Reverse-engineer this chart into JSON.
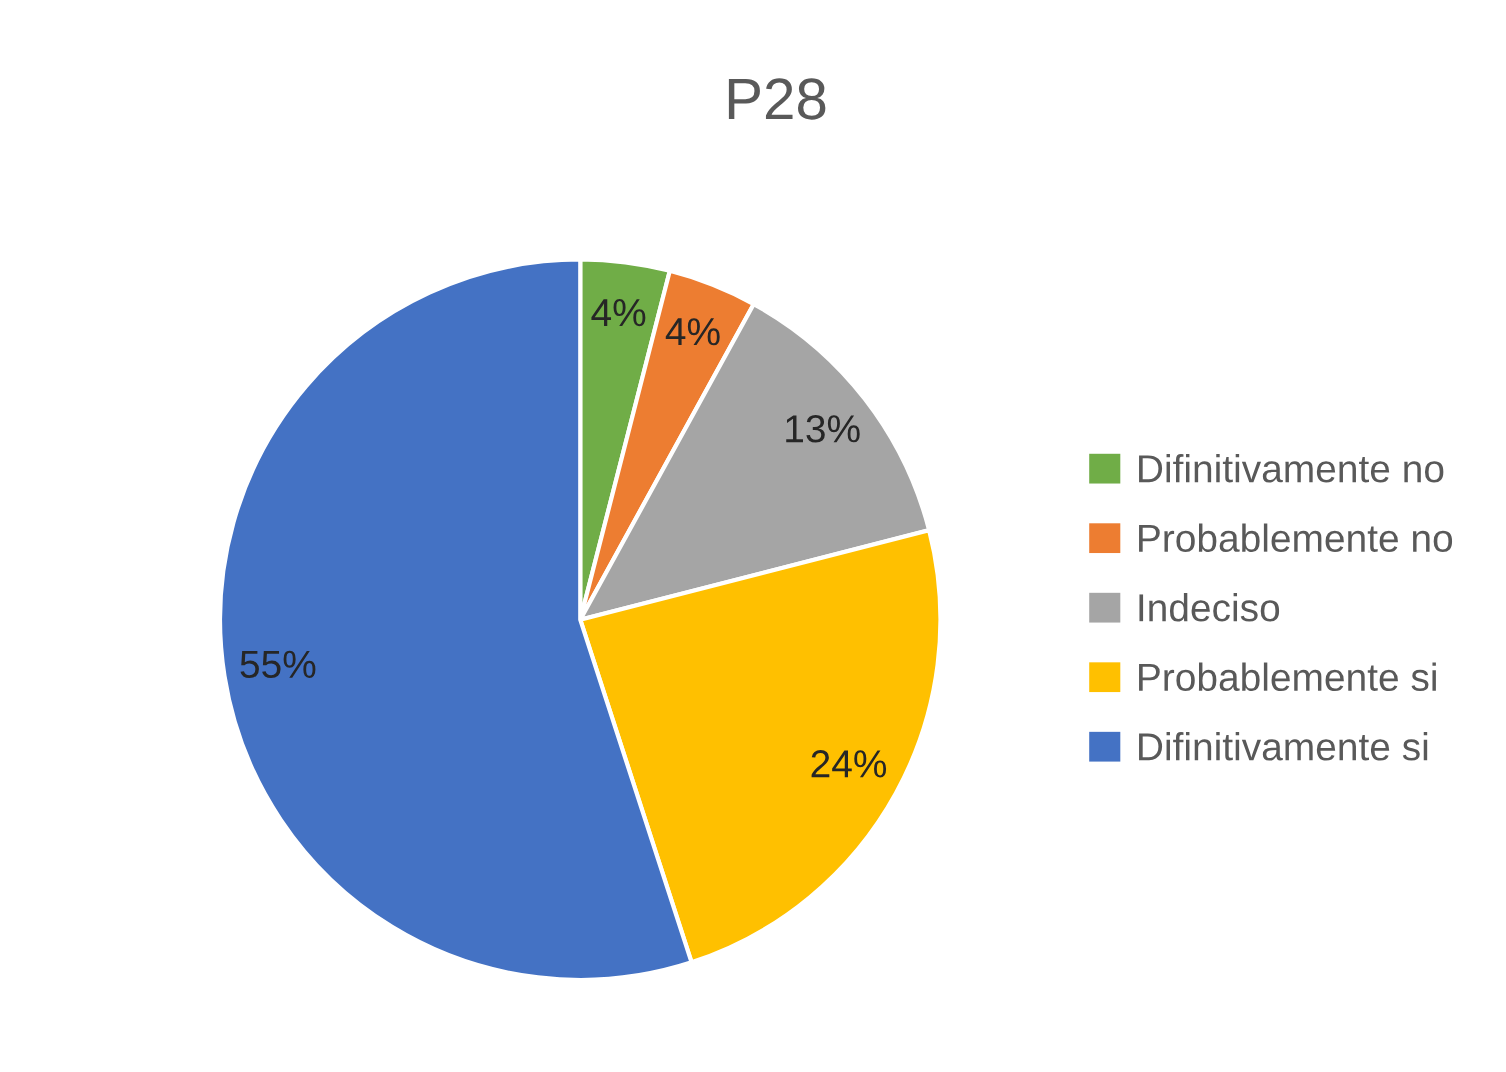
{
  "chart_data": {
    "type": "pie",
    "title": "P28",
    "categories": [
      "Difinitivamente no",
      "Probablemente no",
      "Indeciso",
      "Probablemente si",
      "Difinitivamente si"
    ],
    "values": [
      4,
      4,
      13,
      24,
      55
    ],
    "value_labels": [
      "4%",
      "4%",
      "13%",
      "24%",
      "55%"
    ],
    "colors": [
      "#70ad47",
      "#ed7d31",
      "#a5a5a5",
      "#ffc000",
      "#4472c4"
    ],
    "legend": "right"
  }
}
